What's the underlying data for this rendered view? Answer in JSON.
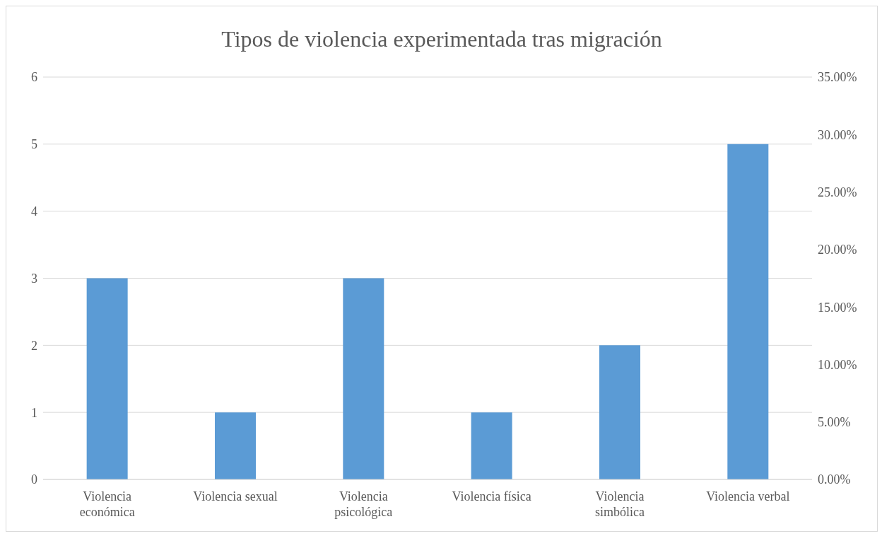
{
  "chart_data": {
    "type": "bar",
    "title": "Tipos de violencia experimentada tras migración",
    "categories": [
      "Violencia económica",
      "Violencia sexual",
      "Violencia psicológica",
      "Violencia física",
      "Violencia simbólica",
      "Violencia verbal"
    ],
    "values": [
      3,
      1,
      3,
      1,
      2,
      5
    ],
    "color": "#5b9bd5",
    "ylim": [
      0,
      6
    ],
    "yticks": [
      0,
      1,
      2,
      3,
      4,
      5,
      6
    ],
    "y2lim": [
      0,
      35
    ],
    "y2ticks": [
      {
        "value": 0,
        "label": "0.00%"
      },
      {
        "value": 5,
        "label": "5.00%"
      },
      {
        "value": 10,
        "label": "10.00%"
      },
      {
        "value": 15,
        "label": "15.00%"
      },
      {
        "value": 20,
        "label": "20.00%"
      },
      {
        "value": 25,
        "label": "25.00%"
      },
      {
        "value": 30,
        "label": "30.00%"
      },
      {
        "value": 35,
        "label": "35.00%"
      }
    ],
    "grid": "y"
  }
}
